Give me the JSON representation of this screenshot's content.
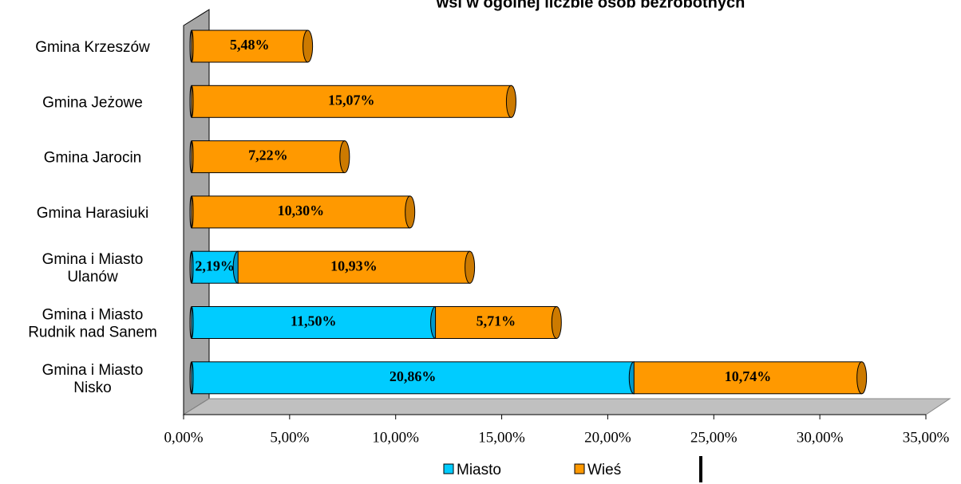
{
  "chart_data": {
    "type": "stacked_bar_horizontal",
    "title": "wsi w ogólnej liczbie osób bezrobotnych",
    "categories": [
      "Gmina Krzeszów",
      "Gmina Jeżowe",
      "Gmina Jarocin",
      "Gmina Harasiuki",
      "Gmina i Miasto\nUlanów",
      "Gmina i Miasto\nRudnik nad Sanem",
      "Gmina i Miasto\nNisko"
    ],
    "series": [
      {
        "name": "Miasto",
        "color": "#00ccff",
        "values": [
          null,
          null,
          null,
          null,
          2.19,
          11.5,
          20.86
        ],
        "value_labels": [
          null,
          null,
          null,
          null,
          "2,19%",
          "11,50%",
          "20,86%"
        ]
      },
      {
        "name": "Wieś",
        "color": "#ff9900",
        "values": [
          5.48,
          15.07,
          7.22,
          10.3,
          10.93,
          5.71,
          10.74
        ],
        "value_labels": [
          "5,48%",
          "15,07%",
          "7,22%",
          "10,30%",
          "10,93%",
          "5,71%",
          "10,74%"
        ]
      }
    ],
    "xlim": [
      0,
      35
    ],
    "xticks": [
      {
        "value": 0,
        "label": "0,00%"
      },
      {
        "value": 5,
        "label": "5,00%"
      },
      {
        "value": 10,
        "label": "10,00%"
      },
      {
        "value": 15,
        "label": "15,00%"
      },
      {
        "value": 20,
        "label": "20,00%"
      },
      {
        "value": 25,
        "label": "25,00%"
      },
      {
        "value": 30,
        "label": "30,00%"
      },
      {
        "value": 35,
        "label": "35,00%"
      }
    ],
    "legend": "bottom"
  }
}
